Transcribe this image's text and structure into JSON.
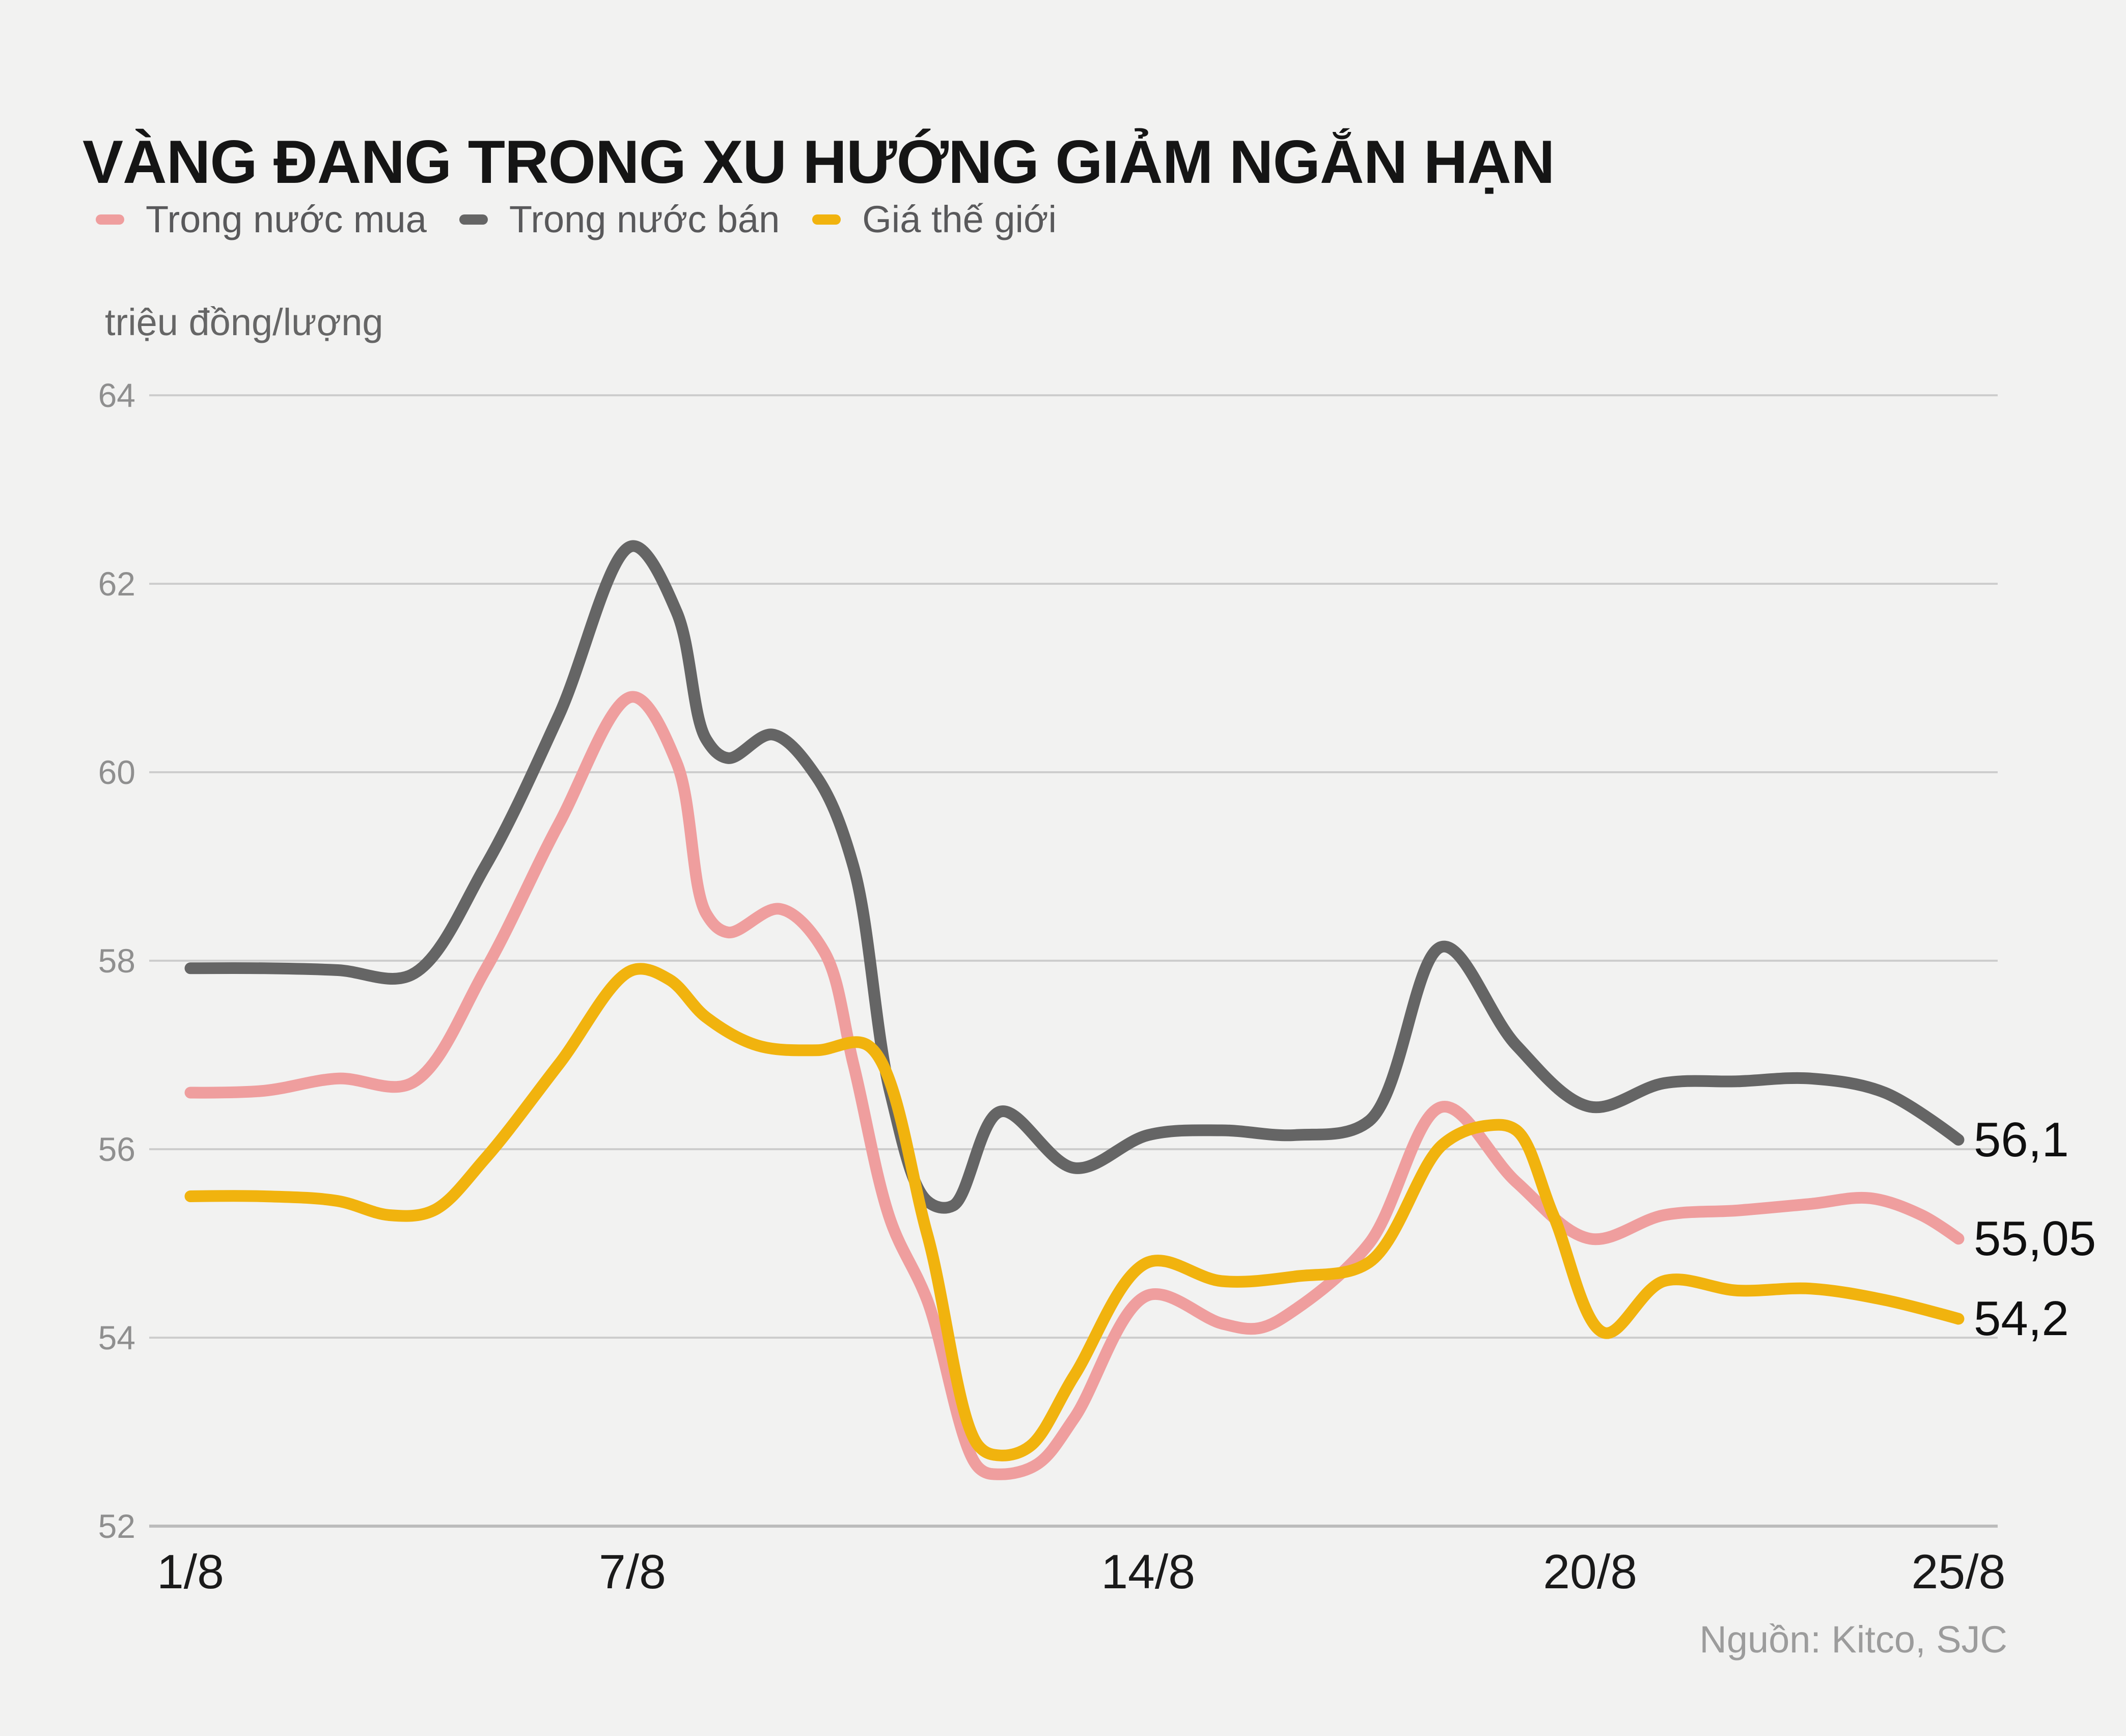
{
  "colors": {
    "background": "#f2f2f1",
    "grid_line": "#cdcdcd",
    "axis_line": "#bcbcbc",
    "title_text": "#151515",
    "legend_text": "#59595b",
    "ytick_text": "#8f8f8f",
    "xtick_text": "#1a1a1a",
    "end_label_text": "#0f0f0f",
    "source_text": "#9c9c9c",
    "series_buy": "#ef9e9e",
    "series_sell": "#656565",
    "series_world": "#f1b30e"
  },
  "legend": [
    {
      "label": "Trong nước mua",
      "color": "#ef9e9e"
    },
    {
      "label": "Trong nước bán",
      "color": "#656565"
    },
    {
      "label": "Giá thế giới",
      "color": "#f1b30e"
    }
  ],
  "chart_data": {
    "type": "line",
    "title": "VÀNG ĐANG TRONG XU HƯỚNG GIẢM NGẮN HẠN",
    "unit_label": "triệu đồng/lượng",
    "source": "Nguồn: Kitco, SJC",
    "xlabel": "",
    "ylabel": "triệu đồng/lượng",
    "ylim": [
      52,
      64
    ],
    "y_ticks": [
      64,
      62,
      60,
      58,
      56,
      54,
      52
    ],
    "x_ticks": [
      {
        "day": 1,
        "label": "1/8"
      },
      {
        "day": 7,
        "label": "7/8"
      },
      {
        "day": 14,
        "label": "14/8"
      },
      {
        "day": 20,
        "label": "20/8"
      },
      {
        "day": 25,
        "label": "25/8"
      }
    ],
    "x_range_days": [
      1,
      25
    ],
    "grid": "horizontal-only",
    "legend_position": "top-left",
    "series": [
      {
        "name": "Trong nước bán",
        "color": "#656565",
        "end_label": "56,1",
        "points": [
          [
            1,
            57.92
          ],
          [
            2,
            57.92
          ],
          [
            3,
            57.9
          ],
          [
            4,
            57.85
          ],
          [
            5,
            59.0
          ],
          [
            6,
            60.6
          ],
          [
            7,
            62.4
          ],
          [
            7.6,
            61.7
          ],
          [
            8,
            60.35
          ],
          [
            8.3,
            60.15
          ],
          [
            8.9,
            60.4
          ],
          [
            9.5,
            59.95
          ],
          [
            10,
            59.0
          ],
          [
            10.5,
            56.6
          ],
          [
            11,
            55.45
          ],
          [
            11.35,
            55.4
          ],
          [
            12,
            56.4
          ],
          [
            13,
            55.8
          ],
          [
            14,
            56.15
          ],
          [
            15,
            56.2
          ],
          [
            16,
            56.15
          ],
          [
            17,
            56.3
          ],
          [
            18,
            58.15
          ],
          [
            19,
            57.1
          ],
          [
            20,
            56.45
          ],
          [
            21,
            56.7
          ],
          [
            22,
            56.72
          ],
          [
            23,
            56.75
          ],
          [
            24,
            56.6
          ],
          [
            25,
            56.1
          ]
        ]
      },
      {
        "name": "Trong nước mua",
        "color": "#ef9e9e",
        "end_label": "55,05",
        "points": [
          [
            1,
            56.6
          ],
          [
            2,
            56.62
          ],
          [
            3,
            56.75
          ],
          [
            4,
            56.7
          ],
          [
            5,
            57.9
          ],
          [
            6,
            59.45
          ],
          [
            7,
            60.8
          ],
          [
            7.6,
            60.1
          ],
          [
            8,
            58.5
          ],
          [
            8.3,
            58.3
          ],
          [
            9,
            58.55
          ],
          [
            9.6,
            58.1
          ],
          [
            10,
            56.9
          ],
          [
            10.5,
            55.25
          ],
          [
            11,
            54.4
          ],
          [
            11.7,
            52.62
          ],
          [
            12,
            52.55
          ],
          [
            12.5,
            52.66
          ],
          [
            13,
            53.15
          ],
          [
            14,
            54.45
          ],
          [
            15,
            54.15
          ],
          [
            15.5,
            54.1
          ],
          [
            16,
            54.3
          ],
          [
            17,
            55.0
          ],
          [
            18,
            56.45
          ],
          [
            19,
            55.65
          ],
          [
            20,
            55.05
          ],
          [
            21,
            55.3
          ],
          [
            22,
            55.35
          ],
          [
            23,
            55.42
          ],
          [
            23.8,
            55.48
          ],
          [
            24.5,
            55.3
          ],
          [
            25,
            55.05
          ]
        ]
      },
      {
        "name": "Giá thế giới",
        "color": "#f1b30e",
        "end_label": "54,2",
        "points": [
          [
            1,
            55.5
          ],
          [
            2,
            55.5
          ],
          [
            3,
            55.45
          ],
          [
            3.7,
            55.3
          ],
          [
            4.3,
            55.35
          ],
          [
            5,
            55.9
          ],
          [
            6,
            56.9
          ],
          [
            7,
            57.9
          ],
          [
            7.5,
            57.8
          ],
          [
            8,
            57.4
          ],
          [
            8.7,
            57.1
          ],
          [
            9.5,
            57.05
          ],
          [
            10.2,
            57.1
          ],
          [
            11,
            55.1
          ],
          [
            11.7,
            52.85
          ],
          [
            12,
            52.75
          ],
          [
            12.4,
            52.85
          ],
          [
            13,
            53.6
          ],
          [
            14,
            54.8
          ],
          [
            15,
            54.6
          ],
          [
            16,
            54.65
          ],
          [
            17,
            54.8
          ],
          [
            18,
            56.05
          ],
          [
            18.6,
            56.25
          ],
          [
            19,
            56.2
          ],
          [
            19.5,
            55.3
          ],
          [
            20.2,
            54.05
          ],
          [
            21,
            54.6
          ],
          [
            22,
            54.5
          ],
          [
            23,
            54.52
          ],
          [
            24,
            54.4
          ],
          [
            25,
            54.2
          ]
        ]
      }
    ]
  }
}
